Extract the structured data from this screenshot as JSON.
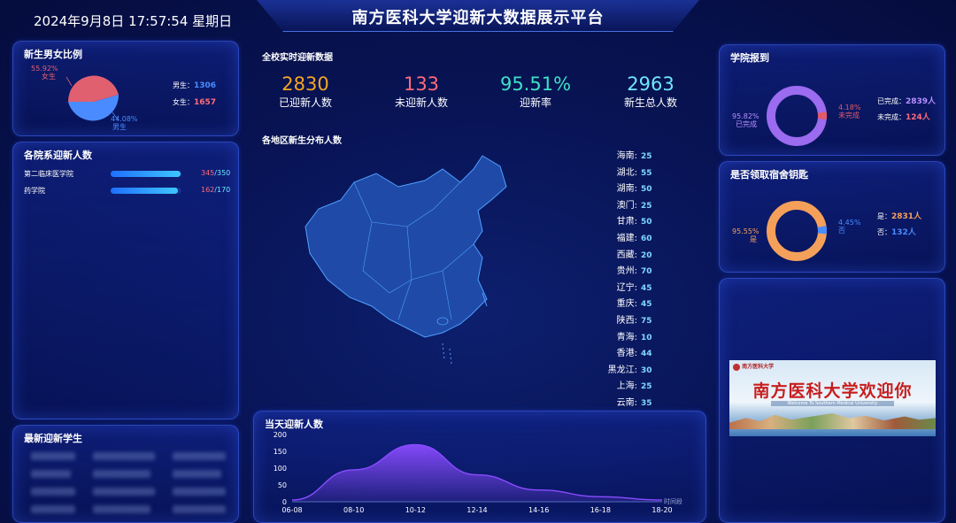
{
  "header": {
    "datetime": "2024年9月8日 17:57:54 星期日",
    "title": "南方医科大学迎新大数据展示平台"
  },
  "gender": {
    "title": "新生男女比例",
    "female_pct": "55.92%",
    "female_label": "女生",
    "male_pct": "44.08%",
    "male_label": "男生",
    "legend_male": "男生：",
    "male_count": "1306",
    "legend_female": "女生：",
    "female_count": "1657",
    "colors": {
      "female": "#e06070",
      "male": "#4a8cff"
    }
  },
  "departments": {
    "title": "各院系迎新人数",
    "items": [
      {
        "name": "第二临床医学院",
        "done": "345",
        "total": "/350",
        "ratio": 0.986
      },
      {
        "name": "药学院",
        "done": "162",
        "total": "/170",
        "ratio": 0.953
      }
    ]
  },
  "latest": {
    "title": "最新迎新学生"
  },
  "realtime": {
    "title": "全校实时迎新数据",
    "stats": [
      {
        "value": "2830",
        "label": "已迎新人数",
        "color": "#f5a623"
      },
      {
        "value": "133",
        "label": "未迎新人数",
        "color": "#ff6b7a"
      },
      {
        "value": "95.51%",
        "label": "迎新率",
        "color": "#3fe0c5"
      },
      {
        "value": "2963",
        "label": "新生总人数",
        "color": "#6fe6ff"
      }
    ]
  },
  "map": {
    "title": "各地区新生分布人数",
    "provinces": [
      {
        "name": "海南:",
        "value": "25"
      },
      {
        "name": "湖北:",
        "value": "55"
      },
      {
        "name": "湖南:",
        "value": "50"
      },
      {
        "name": "澳门:",
        "value": "25"
      },
      {
        "name": "甘肃:",
        "value": "50"
      },
      {
        "name": "福建:",
        "value": "60"
      },
      {
        "name": "西藏:",
        "value": "20"
      },
      {
        "name": "贵州:",
        "value": "70"
      },
      {
        "name": "辽宁:",
        "value": "45"
      },
      {
        "name": "重庆:",
        "value": "45"
      },
      {
        "name": "陕西:",
        "value": "75"
      },
      {
        "name": "青海:",
        "value": "10"
      },
      {
        "name": "香港:",
        "value": "44"
      },
      {
        "name": "黑龙江:",
        "value": "30"
      },
      {
        "name": "上海:",
        "value": "25"
      },
      {
        "name": "云南:",
        "value": "35"
      }
    ]
  },
  "daily": {
    "title": "当天迎新人数",
    "x_unit": "时间段"
  },
  "college_report": {
    "title": "学院报到",
    "done_pct": "95.82%",
    "done_label": "已完成",
    "undone_pct": "4.18%",
    "undone_label": "未完成",
    "legend_done": "已完成：",
    "done_count": "2839人",
    "legend_undone": "未完成：",
    "undone_count": "124人",
    "colors": {
      "done": "#9b6bf0",
      "undone": "#e05a6a"
    }
  },
  "dorm_key": {
    "title": "是否领取宿舍钥匙",
    "yes_pct": "95.55%",
    "yes_label": "是",
    "no_pct": "4.45%",
    "no_label": "否",
    "legend_yes": "是：",
    "yes_count": "2831人",
    "legend_no": "否：",
    "no_count": "132人",
    "colors": {
      "yes": "#f5a05a",
      "no": "#4a8cff"
    }
  },
  "banner": {
    "logo_text": "南方医科大学",
    "headline": "南方医科大学欢迎你",
    "subline": "Welcome To Southern Medical University"
  },
  "chart_data": {
    "type": "area",
    "title": "当天迎新人数",
    "categories": [
      "06-08",
      "08-10",
      "10-12",
      "12-14",
      "14-16",
      "16-18",
      "18-20"
    ],
    "values": [
      5,
      95,
      170,
      80,
      35,
      15,
      5
    ],
    "ylim": [
      0,
      200
    ],
    "yticks": [
      "200",
      "150",
      "100",
      "50",
      "0"
    ],
    "xlabel": "时间段",
    "color": "#8a4bff"
  }
}
